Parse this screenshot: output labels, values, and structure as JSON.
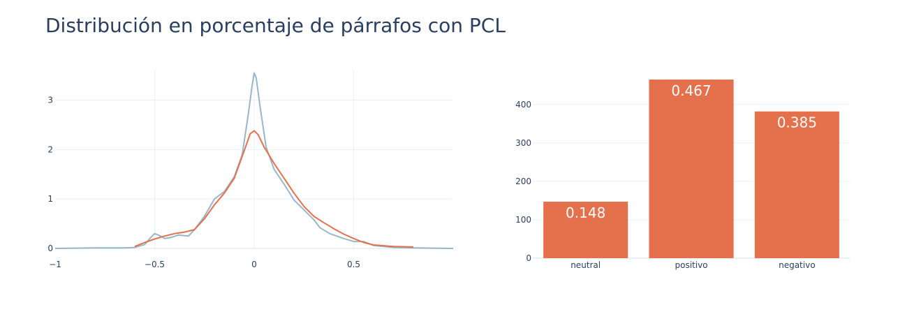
{
  "title": "Distribución en porcentaje de párrafos con PCL",
  "colors": {
    "kde_blue": "#97b7c9",
    "kde_orange": "#e3714d",
    "bar": "#e4714b",
    "text": "#2a3f5f",
    "grid": "#ebf0f8"
  },
  "chart_data": [
    {
      "type": "line",
      "xlim": [
        -1,
        1
      ],
      "ylim": [
        0,
        3.6
      ],
      "xticks": [
        -1,
        -0.5,
        0,
        0.5
      ],
      "xtick_labels": [
        "−1",
        "−0.5",
        "0",
        "0.5"
      ],
      "yticks": [
        0,
        1,
        2,
        3
      ],
      "ytick_labels": [
        "0",
        "1",
        "2",
        "3"
      ],
      "series": [
        {
          "color": "#97b7c9",
          "x": [
            -1,
            -0.8,
            -0.65,
            -0.6,
            -0.55,
            -0.52,
            -0.5,
            -0.47,
            -0.45,
            -0.42,
            -0.38,
            -0.33,
            -0.3,
            -0.25,
            -0.2,
            -0.15,
            -0.1,
            -0.06,
            -0.03,
            -0.01,
            0.0,
            0.01,
            0.03,
            0.06,
            0.1,
            0.15,
            0.2,
            0.25,
            0.3,
            0.33,
            0.38,
            0.45,
            0.5,
            0.55,
            0.6,
            0.7,
            0.8,
            1.0
          ],
          "y": [
            0,
            0.01,
            0.01,
            0.02,
            0.08,
            0.22,
            0.3,
            0.25,
            0.2,
            0.22,
            0.27,
            0.25,
            0.38,
            0.65,
            1.0,
            1.15,
            1.45,
            1.9,
            2.7,
            3.3,
            3.55,
            3.45,
            2.85,
            2.05,
            1.6,
            1.3,
            0.98,
            0.78,
            0.58,
            0.42,
            0.3,
            0.2,
            0.14,
            0.14,
            0.06,
            0.02,
            0.01,
            0.0
          ]
        },
        {
          "color": "#e3714d",
          "x": [
            -0.6,
            -0.55,
            -0.5,
            -0.45,
            -0.4,
            -0.35,
            -0.3,
            -0.25,
            -0.2,
            -0.15,
            -0.1,
            -0.05,
            -0.02,
            0.0,
            0.02,
            0.05,
            0.1,
            0.15,
            0.2,
            0.25,
            0.3,
            0.35,
            0.4,
            0.45,
            0.5,
            0.55,
            0.6,
            0.7,
            0.8
          ],
          "y": [
            0.04,
            0.12,
            0.19,
            0.25,
            0.3,
            0.33,
            0.38,
            0.6,
            0.88,
            1.12,
            1.42,
            1.98,
            2.32,
            2.38,
            2.3,
            2.05,
            1.72,
            1.42,
            1.12,
            0.85,
            0.65,
            0.52,
            0.4,
            0.29,
            0.2,
            0.12,
            0.07,
            0.04,
            0.03
          ]
        }
      ]
    },
    {
      "type": "bar",
      "categories": [
        "neutral",
        "positivo",
        "negativo"
      ],
      "values": [
        147,
        465,
        382
      ],
      "labels": [
        "0.148",
        "0.467",
        "0.385"
      ],
      "ylim": [
        0,
        465
      ],
      "yticks": [
        0,
        100,
        200,
        300,
        400
      ],
      "ytick_labels": [
        "0",
        "100",
        "200",
        "300",
        "400"
      ]
    }
  ]
}
